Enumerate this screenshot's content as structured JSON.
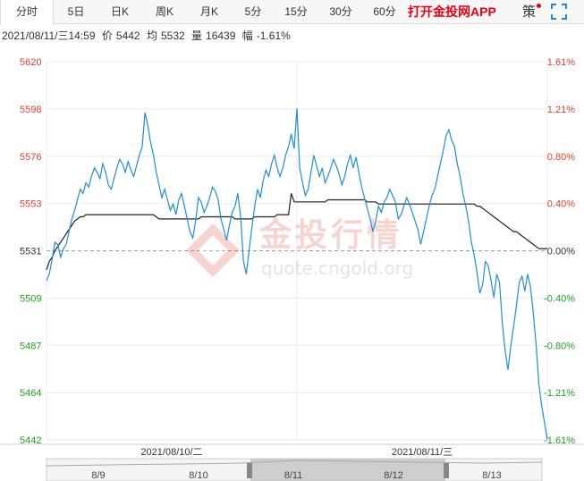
{
  "tabs": [
    {
      "label": "分时",
      "active": true
    },
    {
      "label": "5日",
      "active": false
    },
    {
      "label": "日K",
      "active": false
    },
    {
      "label": "周K",
      "active": false
    },
    {
      "label": "月K",
      "active": false
    },
    {
      "label": "5分",
      "active": false
    },
    {
      "label": "15分",
      "active": false
    },
    {
      "label": "30分",
      "active": false
    },
    {
      "label": "60分",
      "active": false
    }
  ],
  "app_link": "打开金投网APP",
  "extra_tab": "策",
  "info": {
    "datetime": "2021/08/11/三14:59",
    "price_label": "价",
    "price": "5442",
    "avg_label": "均",
    "avg": "5532",
    "volume_label": "量",
    "volume": "16439",
    "change_label": "幅",
    "change": "-1.61%"
  },
  "watermark": {
    "brand": "金投行情",
    "url": "quote.cngold.org"
  },
  "colors": {
    "up": "#e0402d",
    "down": "#21a021",
    "price_line": "#1f8ed4",
    "avg_line": "#222222",
    "grid": "#ebebeb"
  },
  "chart_data": {
    "type": "line",
    "y_ticks_left": [
      "5620",
      "5598",
      "5576",
      "5553",
      "5531",
      "5509",
      "5487",
      "5464",
      "5442"
    ],
    "y_ticks_right": [
      "1.61%",
      "1.21%",
      "0.80%",
      "0.40%",
      "0.00%",
      "-0.40%",
      "-0.80%",
      "-1.21%",
      "-1.61%"
    ],
    "ylim": [
      5442,
      5620
    ],
    "base_price": 5531,
    "date_labels": [
      "2021/08/10/二",
      "2021/08/11/三"
    ],
    "nav_labels": [
      "8/9",
      "8/10",
      "8/11",
      "8/12",
      "8/13"
    ],
    "series": [
      {
        "key": "price",
        "values": [
          5517,
          5520,
          5527,
          5535,
          5534,
          5528,
          5532,
          5534,
          5540,
          5546,
          5550,
          5555,
          5560,
          5558,
          5563,
          5561,
          5566,
          5570,
          5568,
          5565,
          5572,
          5568,
          5562,
          5560,
          5565,
          5570,
          5574,
          5572,
          5568,
          5573,
          5569,
          5566,
          5571,
          5576,
          5580,
          5596,
          5590,
          5582,
          5576,
          5568,
          5562,
          5556,
          5560,
          5555,
          5550,
          5553,
          5548,
          5555,
          5558,
          5552,
          5546,
          5540,
          5537,
          5545,
          5556,
          5554,
          5549,
          5552,
          5556,
          5561,
          5559,
          5555,
          5546,
          5541,
          5536,
          5543,
          5549,
          5552,
          5558,
          5547,
          5526,
          5520,
          5531,
          5542,
          5552,
          5560,
          5556,
          5564,
          5569,
          5566,
          5572,
          5576,
          5570,
          5566,
          5570,
          5576,
          5580,
          5586,
          5579,
          5598,
          5570,
          5563,
          5557,
          5560,
          5568,
          5576,
          5571,
          5566,
          5570,
          5563,
          5566,
          5570,
          5574,
          5571,
          5567,
          5562,
          5566,
          5572,
          5576,
          5570,
          5575,
          5568,
          5561,
          5556,
          5551,
          5546,
          5540,
          5545,
          5552,
          5549,
          5554,
          5556,
          5560,
          5557,
          5554,
          5546,
          5548,
          5552,
          5556,
          5553,
          5549,
          5545,
          5541,
          5534,
          5540,
          5546,
          5552,
          5557,
          5560,
          5566,
          5572,
          5578,
          5585,
          5588,
          5583,
          5580,
          5572,
          5566,
          5558,
          5552,
          5545,
          5535,
          5529,
          5521,
          5511,
          5515,
          5526,
          5524,
          5517,
          5509,
          5520,
          5516,
          5497,
          5484,
          5475,
          5486,
          5495,
          5505,
          5516,
          5519,
          5512,
          5520,
          5514,
          5502,
          5487,
          5468,
          5458,
          5450,
          5442
        ]
      },
      {
        "key": "avg",
        "values": [
          5522,
          5526,
          5528,
          5531,
          5533,
          5535,
          5537,
          5539,
          5541,
          5543,
          5545,
          5546,
          5547,
          5547,
          5548,
          5548,
          5548,
          5548,
          5548,
          5548,
          5548,
          5548,
          5548,
          5548,
          5548,
          5548,
          5548,
          5548,
          5548,
          5548,
          5548,
          5548,
          5548,
          5548,
          5548,
          5548,
          5548,
          5548,
          5548,
          5547,
          5546,
          5546,
          5546,
          5546,
          5546,
          5546,
          5546,
          5546,
          5546,
          5546,
          5546,
          5546,
          5546,
          5546,
          5546,
          5547,
          5547,
          5547,
          5547,
          5547,
          5547,
          5547,
          5547,
          5547,
          5547,
          5547,
          5547,
          5546,
          5546,
          5546,
          5546,
          5546,
          5546,
          5546,
          5547,
          5547,
          5547,
          5547,
          5547,
          5547,
          5547,
          5547,
          5548,
          5548,
          5548,
          5548,
          5548,
          5558,
          5554,
          5554,
          5554,
          5554,
          5554,
          5554,
          5554,
          5554,
          5554,
          5554,
          5554,
          5554,
          5555,
          5555,
          5555,
          5555,
          5555,
          5555,
          5555,
          5555,
          5555,
          5555,
          5555,
          5555,
          5555,
          5555,
          5554,
          5554,
          5554,
          5554,
          5553,
          5553,
          5553,
          5553,
          5553,
          5553,
          5553,
          5553,
          5553,
          5553,
          5553,
          5553,
          5553,
          5553,
          5553,
          5553,
          5553,
          5553,
          5553,
          5553,
          5553,
          5553,
          5553,
          5553,
          5553,
          5553,
          5553,
          5553,
          5553,
          5553,
          5553,
          5553,
          5553,
          5553,
          5553,
          5552,
          5552,
          5551,
          5550,
          5549,
          5548,
          5547,
          5546,
          5545,
          5544,
          5543,
          5542,
          5541,
          5540,
          5540,
          5539,
          5538,
          5537,
          5536,
          5535,
          5534,
          5533,
          5532,
          5532,
          5532,
          5532
        ]
      }
    ]
  }
}
